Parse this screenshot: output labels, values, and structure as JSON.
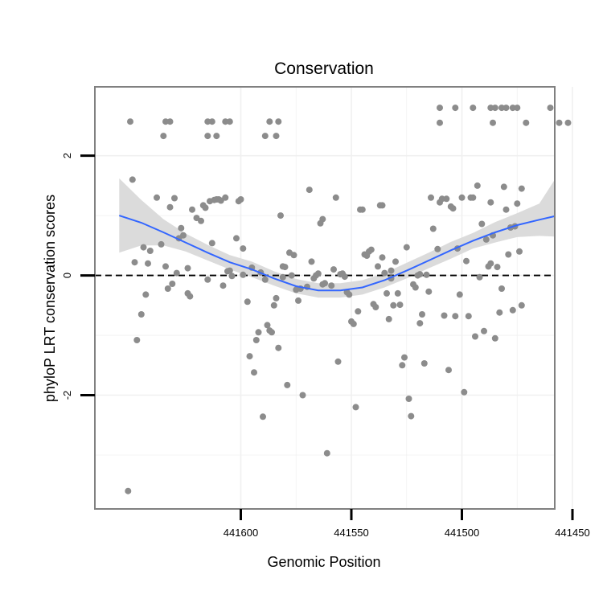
{
  "chart_data": {
    "type": "scatter",
    "title": "Conservation",
    "xlabel": "Genomic Position",
    "ylabel": "phyloP LRT conservation scores",
    "x_reversed": true,
    "xlim": [
      441458,
      441666
    ],
    "ylim": [
      -3.9,
      3.15
    ],
    "x_ticks": [
      441600,
      441550,
      441500,
      441450
    ],
    "x_tick_labels": [
      "441600",
      "441550",
      "441500",
      "441450"
    ],
    "y_ticks": [
      -2,
      0,
      2
    ],
    "y_tick_labels": [
      "-2",
      "0",
      "2"
    ],
    "grid": true,
    "reference_line": {
      "y": 0,
      "style": "dashed",
      "color": "#000000"
    },
    "colors": {
      "points": "#8c8c8c",
      "smooth": "#3366ff",
      "ribbon": "#d9d9d9",
      "panel_border": "#808080",
      "grid": "#f0f0f0"
    },
    "series": [
      {
        "name": "phyloP scores",
        "kind": "points",
        "points": [
          [
            441650,
            2.57
          ],
          [
            441634,
            2.57
          ],
          [
            441632,
            2.57
          ],
          [
            441615,
            2.57
          ],
          [
            441613,
            2.57
          ],
          [
            441607,
            2.57
          ],
          [
            441605,
            2.57
          ],
          [
            441587,
            2.57
          ],
          [
            441583,
            2.57
          ],
          [
            441635,
            2.33
          ],
          [
            441615,
            2.33
          ],
          [
            441611,
            2.33
          ],
          [
            441589,
            2.33
          ],
          [
            441584,
            2.33
          ],
          [
            441510,
            2.8
          ],
          [
            441503,
            2.8
          ],
          [
            441495,
            2.8
          ],
          [
            441487,
            2.8
          ],
          [
            441485,
            2.8
          ],
          [
            441482,
            2.8
          ],
          [
            441480,
            2.8
          ],
          [
            441477,
            2.8
          ],
          [
            441475,
            2.8
          ],
          [
            441460,
            2.8
          ],
          [
            441510,
            2.55
          ],
          [
            441486,
            2.55
          ],
          [
            441471,
            2.55
          ],
          [
            441452,
            2.55
          ],
          [
            441456,
            2.55
          ],
          [
            441648,
            0.22
          ],
          [
            441647,
            -1.08
          ],
          [
            441645,
            -0.65
          ],
          [
            441644,
            0.47
          ],
          [
            441643,
            -0.32
          ],
          [
            441642,
            0.2
          ],
          [
            441641,
            0.41
          ],
          [
            441638,
            1.3
          ],
          [
            441636,
            0.52
          ],
          [
            441634,
            0.15
          ],
          [
            441633,
            -0.22
          ],
          [
            441632,
            1.14
          ],
          [
            441631,
            -0.14
          ],
          [
            441630,
            1.29
          ],
          [
            441629,
            0.04
          ],
          [
            441628,
            0.62
          ],
          [
            441627,
            0.79
          ],
          [
            441626,
            0.67
          ],
          [
            441624,
            0.12
          ],
          [
            441623,
            -0.35
          ],
          [
            441622,
            1.1
          ],
          [
            441620,
            0.96
          ],
          [
            441618,
            0.91
          ],
          [
            441617,
            1.17
          ],
          [
            441616,
            1.13
          ],
          [
            441615,
            -0.07
          ],
          [
            441614,
            1.24
          ],
          [
            441613,
            0.54
          ],
          [
            441612,
            1.26
          ],
          [
            441611,
            1.27
          ],
          [
            441610,
            1.27
          ],
          [
            441609,
            1.25
          ],
          [
            441608,
            -0.17
          ],
          [
            441606,
            0.07
          ],
          [
            441605,
            0.08
          ],
          [
            441604,
            -0.01
          ],
          [
            441602,
            0.62
          ],
          [
            441601,
            1.24
          ],
          [
            441600,
            1.27
          ],
          [
            441599,
            0.01
          ],
          [
            441597,
            -0.44
          ],
          [
            441596,
            -1.35
          ],
          [
            441595,
            0.13
          ],
          [
            441594,
            -1.62
          ],
          [
            441593,
            -1.08
          ],
          [
            441592,
            -0.95
          ],
          [
            441591,
            0.05
          ],
          [
            441590,
            -2.36
          ],
          [
            441589,
            -0.07
          ],
          [
            441588,
            -0.83
          ],
          [
            441587,
            -0.92
          ],
          [
            441586,
            -0.95
          ],
          [
            441585,
            -0.5
          ],
          [
            441584,
            -0.38
          ],
          [
            441583,
            -1.21
          ],
          [
            441582,
            1.0
          ],
          [
            441581,
            0.15
          ],
          [
            441580,
            0.14
          ],
          [
            441579,
            -1.83
          ],
          [
            441578,
            0.38
          ],
          [
            441577,
            0.0
          ],
          [
            441576,
            0.34
          ],
          [
            441575,
            -0.24
          ],
          [
            441574,
            -0.42
          ],
          [
            441573,
            -0.22
          ],
          [
            441572,
            -2.0
          ],
          [
            441570,
            -0.19
          ],
          [
            441569,
            1.43
          ],
          [
            441568,
            0.23
          ],
          [
            441567,
            -0.05
          ],
          [
            441566,
            0.0
          ],
          [
            441565,
            0.03
          ],
          [
            441564,
            0.87
          ],
          [
            441563,
            0.94
          ],
          [
            441562,
            -0.13
          ],
          [
            441561,
            -2.97
          ],
          [
            441559,
            -0.17
          ],
          [
            441558,
            0.1
          ],
          [
            441557,
            1.3
          ],
          [
            441556,
            -1.44
          ],
          [
            441555,
            0.02
          ],
          [
            441553,
            -0.02
          ],
          [
            441552,
            -0.28
          ],
          [
            441551,
            -0.32
          ],
          [
            441550,
            -0.77
          ],
          [
            441549,
            -0.81
          ],
          [
            441548,
            -2.2
          ],
          [
            441547,
            -0.6
          ],
          [
            441546,
            1.1
          ],
          [
            441545,
            1.1
          ],
          [
            441544,
            0.35
          ],
          [
            441543,
            0.33
          ],
          [
            441542,
            0.4
          ],
          [
            441541,
            0.43
          ],
          [
            441540,
            -0.48
          ],
          [
            441539,
            -0.53
          ],
          [
            441538,
            0.15
          ],
          [
            441537,
            1.17
          ],
          [
            441536,
            1.17
          ],
          [
            441535,
            0.04
          ],
          [
            441534,
            -0.3
          ],
          [
            441533,
            -0.73
          ],
          [
            441532,
            0.08
          ],
          [
            441531,
            -0.5
          ],
          [
            441530,
            0.23
          ],
          [
            441529,
            -0.3
          ],
          [
            441528,
            -0.49
          ],
          [
            441527,
            -1.5
          ],
          [
            441526,
            -1.37
          ],
          [
            441525,
            0.47
          ],
          [
            441524,
            -2.06
          ],
          [
            441523,
            -2.35
          ],
          [
            441522,
            -0.15
          ],
          [
            441521,
            -0.2
          ],
          [
            441520,
            0.0
          ],
          [
            441519,
            -0.8
          ],
          [
            441518,
            -0.65
          ],
          [
            441517,
            -1.47
          ],
          [
            441516,
            0.01
          ],
          [
            441515,
            -0.27
          ],
          [
            441514,
            1.3
          ],
          [
            441513,
            0.78
          ],
          [
            441511,
            0.44
          ],
          [
            441510,
            1.22
          ],
          [
            441509,
            1.28
          ],
          [
            441508,
            -0.67
          ],
          [
            441507,
            1.28
          ],
          [
            441506,
            -1.58
          ],
          [
            441505,
            1.15
          ],
          [
            441504,
            1.12
          ],
          [
            441503,
            -0.68
          ],
          [
            441502,
            0.45
          ],
          [
            441500,
            1.3
          ],
          [
            441499,
            -1.95
          ],
          [
            441498,
            0.24
          ],
          [
            441497,
            -0.68
          ],
          [
            441496,
            1.3
          ],
          [
            441495,
            1.3
          ],
          [
            441494,
            -1.02
          ],
          [
            441493,
            1.5
          ],
          [
            441492,
            -0.03
          ],
          [
            441491,
            0.86
          ],
          [
            441490,
            -0.93
          ],
          [
            441489,
            0.6
          ],
          [
            441488,
            0.15
          ],
          [
            441487,
            1.22
          ],
          [
            441486,
            0.67
          ],
          [
            441485,
            -1.05
          ],
          [
            441484,
            0.14
          ],
          [
            441483,
            -0.62
          ],
          [
            441482,
            -0.22
          ],
          [
            441481,
            1.48
          ],
          [
            441480,
            1.1
          ],
          [
            441479,
            0.35
          ],
          [
            441478,
            0.8
          ],
          [
            441477,
            -0.58
          ],
          [
            441476,
            0.82
          ],
          [
            441475,
            1.2
          ],
          [
            441474,
            0.4
          ],
          [
            441473,
            1.45
          ],
          [
            441649,
            1.6
          ],
          [
            441473,
            -0.5
          ],
          [
            441519,
            0.02
          ],
          [
            441532,
            -0.05
          ],
          [
            441554,
            0.03
          ],
          [
            441536,
            0.3
          ],
          [
            441501,
            -0.32
          ],
          [
            441599,
            0.45
          ],
          [
            441607,
            1.3
          ],
          [
            441563,
            -0.15
          ],
          [
            441487,
            0.2
          ],
          [
            441624,
            -0.3
          ],
          [
            441581,
            -0.03
          ],
          [
            441651,
            -3.6
          ]
        ]
      },
      {
        "name": "loess fit",
        "kind": "line",
        "x": [
          441655,
          441645,
          441635,
          441625,
          441615,
          441605,
          441595,
          441585,
          441575,
          441565,
          441555,
          441545,
          441535,
          441525,
          441515,
          441505,
          441495,
          441485,
          441475,
          441465,
          441458
        ],
        "y": [
          1.0,
          0.88,
          0.72,
          0.55,
          0.38,
          0.22,
          0.1,
          -0.05,
          -0.18,
          -0.25,
          -0.25,
          -0.2,
          -0.08,
          0.08,
          0.25,
          0.42,
          0.58,
          0.72,
          0.84,
          0.93,
          0.99
        ],
        "ci_low": [
          0.38,
          0.5,
          0.5,
          0.4,
          0.25,
          0.1,
          -0.03,
          -0.17,
          -0.3,
          -0.37,
          -0.37,
          -0.32,
          -0.2,
          -0.05,
          0.12,
          0.28,
          0.45,
          0.55,
          0.64,
          0.66,
          0.65
        ],
        "ci_high": [
          1.62,
          1.26,
          0.94,
          0.7,
          0.51,
          0.34,
          0.23,
          0.07,
          -0.06,
          -0.13,
          -0.13,
          -0.08,
          0.04,
          0.21,
          0.38,
          0.56,
          0.71,
          0.89,
          1.04,
          1.2,
          1.6
        ]
      }
    ]
  }
}
